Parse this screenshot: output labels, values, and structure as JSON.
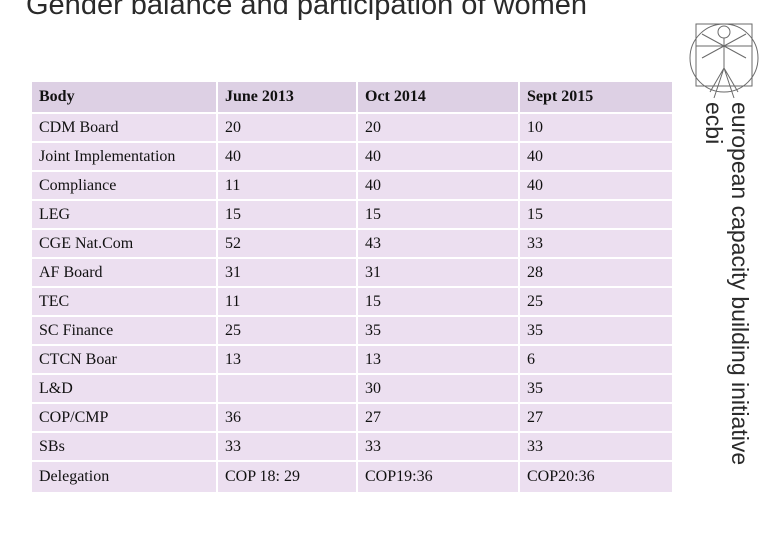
{
  "slide": {
    "title": "Gender balance and participation of women",
    "side_org_name": "european capacity building initiative",
    "side_org_abbr": "ecbi"
  },
  "logo": {
    "icon": "vitruvian-man-icon"
  },
  "table": {
    "headers": [
      "Body",
      "June 2013",
      "Oct 2014",
      "Sept 2015"
    ],
    "rows": [
      [
        "CDM Board",
        "20",
        "20",
        "10"
      ],
      [
        "Joint Implementation",
        "40",
        "40",
        "40"
      ],
      [
        "Compliance",
        "11",
        "40",
        "40"
      ],
      [
        "LEG",
        "15",
        "15",
        "15"
      ],
      [
        "CGE Nat.Com",
        "52",
        "43",
        "33"
      ],
      [
        "AF Board",
        "31",
        "31",
        "28"
      ],
      [
        "TEC",
        "11",
        "15",
        "25"
      ],
      [
        "SC Finance",
        "25",
        "35",
        "35"
      ],
      [
        "CTCN Boar",
        "13",
        "13",
        "6"
      ],
      [
        "L&D",
        "",
        "30",
        "35"
      ],
      [
        "COP/CMP",
        "36",
        "27",
        "27"
      ],
      [
        "SBs",
        "33",
        "33",
        "33"
      ],
      [
        "Delegation",
        "COP 18: 29",
        "COP19:36",
        "COP20:36"
      ]
    ]
  }
}
